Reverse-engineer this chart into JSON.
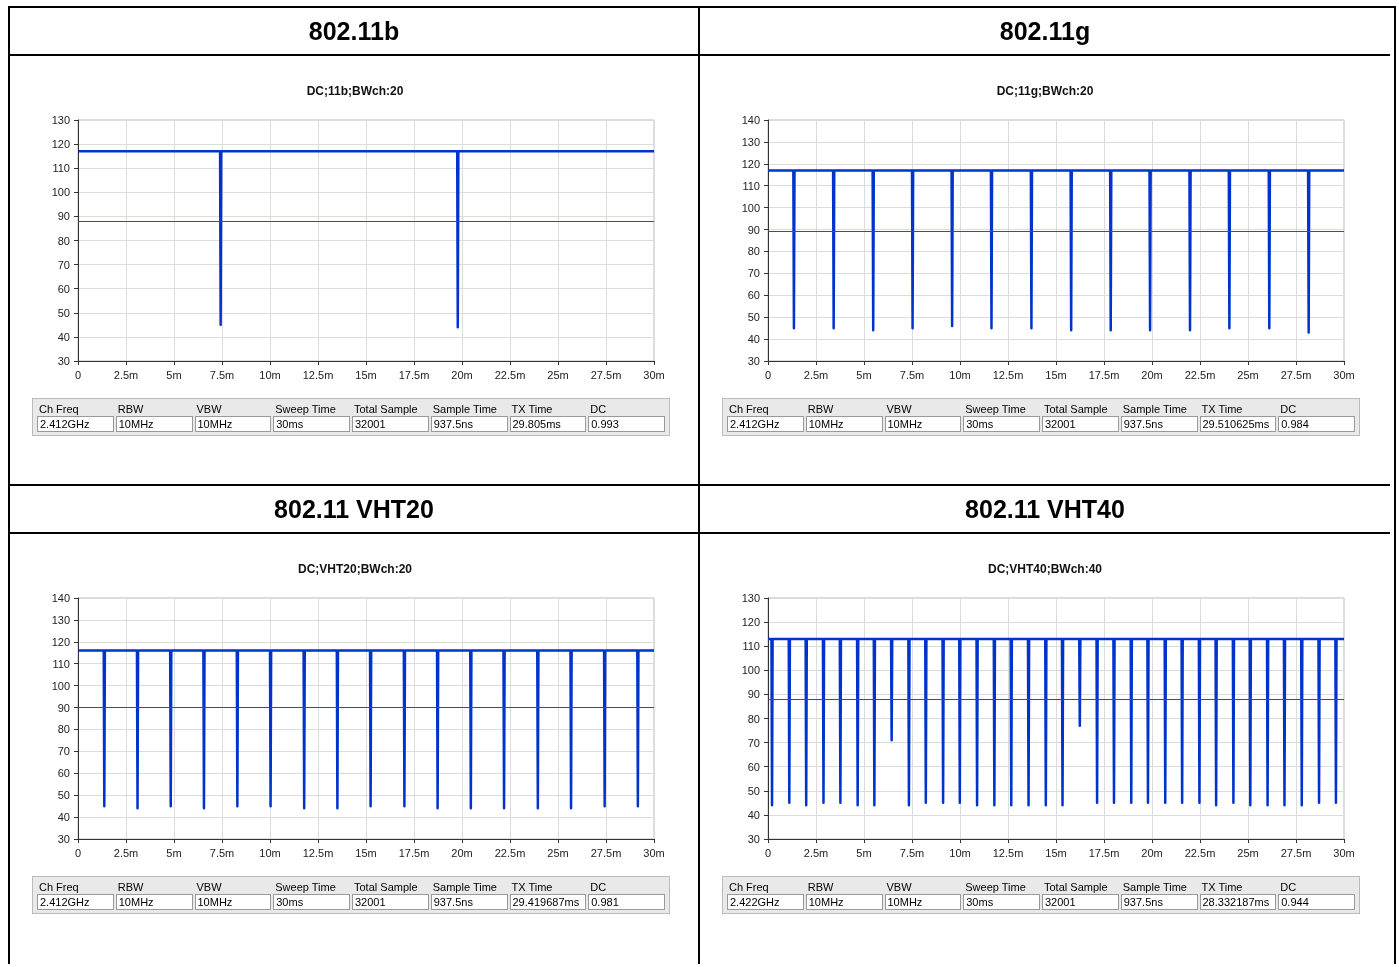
{
  "chart_data": [
    {
      "type": "line",
      "title": "802.11b",
      "subtitle": "DC;11b;BWch:20",
      "marker": "none",
      "grid": true,
      "x": [
        0,
        7.4,
        7.43,
        7.46,
        19.75,
        19.78,
        19.81,
        30
      ],
      "series": [
        {
          "color": "#0033cc",
          "values": [
            117,
            117,
            45,
            117,
            117,
            44,
            117,
            117
          ]
        }
      ],
      "xlim": [
        0,
        30
      ],
      "xticks": [
        {
          "value": 0,
          "label": "0"
        },
        {
          "value": 2.5,
          "label": "2.5m"
        },
        {
          "value": 5,
          "label": "5m"
        },
        {
          "value": 7.5,
          "label": "7.5m"
        },
        {
          "value": 10,
          "label": "10m"
        },
        {
          "value": 12.5,
          "label": "12.5m"
        },
        {
          "value": 15,
          "label": "15m"
        },
        {
          "value": 17.5,
          "label": "17.5m"
        },
        {
          "value": 20,
          "label": "20m"
        },
        {
          "value": 22.5,
          "label": "22.5m"
        },
        {
          "value": 25,
          "label": "25m"
        },
        {
          "value": 27.5,
          "label": "27.5m"
        },
        {
          "value": 30,
          "label": "30m"
        }
      ],
      "ylim": [
        30,
        130
      ],
      "yticks": [
        30,
        40,
        50,
        60,
        70,
        80,
        90,
        100,
        110,
        120,
        130
      ],
      "ref_lines": [
        {
          "axis": "y",
          "value": 88,
          "color": "#ff0000"
        }
      ],
      "annotations": [
        "Ch Freq",
        "RBW",
        "VBW",
        "Sweep Time",
        "Total Sample",
        "Sample Time",
        "TX Time",
        "DC",
        "2.412GHz",
        "10MHz",
        "10MHz",
        "30ms",
        "32001",
        "937.5ns",
        "29.805ms",
        "0.993"
      ]
    },
    {
      "type": "line",
      "title": "802.11g",
      "subtitle": "DC;11g;BWch:20",
      "marker": "none",
      "grid": true,
      "x": [
        0,
        1.32,
        1.35,
        1.38,
        3.39,
        3.42,
        3.45,
        5.45,
        5.48,
        5.51,
        7.5,
        7.53,
        7.56,
        9.56,
        9.59,
        9.62,
        11.61,
        11.64,
        11.67,
        13.69,
        13.72,
        13.75,
        15.76,
        15.79,
        15.82,
        17.82,
        17.85,
        17.88,
        19.87,
        19.9,
        19.93,
        21.95,
        21.98,
        22.01,
        24,
        24.03,
        24.06,
        26.08,
        26.11,
        26.14,
        28.13,
        28.16,
        28.19,
        30
      ],
      "series": [
        {
          "color": "#0033cc",
          "values": [
            117,
            117,
            45,
            117,
            117,
            45,
            117,
            117,
            44,
            117,
            117,
            45,
            117,
            117,
            46,
            117,
            117,
            45,
            117,
            117,
            45,
            117,
            117,
            44,
            117,
            117,
            44,
            117,
            117,
            44,
            117,
            117,
            44,
            117,
            117,
            45,
            117,
            117,
            45,
            117,
            117,
            43,
            117,
            117
          ]
        }
      ],
      "xlim": [
        0,
        30
      ],
      "xticks": [
        {
          "value": 0,
          "label": "0"
        },
        {
          "value": 2.5,
          "label": "2.5m"
        },
        {
          "value": 5,
          "label": "5m"
        },
        {
          "value": 7.5,
          "label": "7.5m"
        },
        {
          "value": 10,
          "label": "10m"
        },
        {
          "value": 12.5,
          "label": "12.5m"
        },
        {
          "value": 15,
          "label": "15m"
        },
        {
          "value": 17.5,
          "label": "17.5m"
        },
        {
          "value": 20,
          "label": "20m"
        },
        {
          "value": 22.5,
          "label": "22.5m"
        },
        {
          "value": 25,
          "label": "25m"
        },
        {
          "value": 27.5,
          "label": "27.5m"
        },
        {
          "value": 30,
          "label": "30m"
        }
      ],
      "ylim": [
        30,
        140
      ],
      "yticks": [
        30,
        40,
        50,
        60,
        70,
        80,
        90,
        100,
        110,
        120,
        130,
        140
      ],
      "ref_lines": [
        {
          "axis": "y",
          "value": 89,
          "color": "#ff0000"
        }
      ],
      "annotations": [
        "Ch Freq",
        "RBW",
        "VBW",
        "Sweep Time",
        "Total Sample",
        "Sample Time",
        "TX Time",
        "DC",
        "2.412GHz",
        "10MHz",
        "10MHz",
        "30ms",
        "32001",
        "937.5ns",
        "29.510625ms",
        "0.984"
      ]
    },
    {
      "type": "line",
      "title": "802.11 VHT20",
      "subtitle": "DC;VHT20;BWch:20",
      "marker": "none",
      "grid": true,
      "x": [
        0,
        1.34,
        1.37,
        1.4,
        3.07,
        3.1,
        3.13,
        4.8,
        4.83,
        4.86,
        6.53,
        6.56,
        6.59,
        8.27,
        8.3,
        8.33,
        10,
        10.03,
        10.06,
        11.75,
        11.78,
        11.81,
        13.48,
        13.51,
        13.54,
        15.21,
        15.24,
        15.27,
        16.97,
        17,
        17.03,
        18.7,
        18.73,
        18.76,
        20.43,
        20.46,
        20.49,
        22.16,
        22.19,
        22.22,
        23.92,
        23.95,
        23.98,
        25.65,
        25.68,
        25.71,
        27.4,
        27.43,
        27.46,
        29.13,
        29.16,
        29.19,
        30
      ],
      "series": [
        {
          "color": "#0033cc",
          "values": [
            116,
            116,
            45,
            116,
            116,
            44,
            116,
            116,
            45,
            116,
            116,
            44,
            116,
            116,
            45,
            116,
            116,
            45,
            116,
            116,
            44,
            116,
            116,
            44,
            116,
            116,
            45,
            116,
            116,
            45,
            116,
            116,
            44,
            116,
            116,
            44,
            116,
            116,
            44,
            116,
            116,
            44,
            116,
            116,
            44,
            116,
            116,
            45,
            116,
            116,
            45,
            116,
            116
          ]
        }
      ],
      "xlim": [
        0,
        30
      ],
      "xticks": [
        {
          "value": 0,
          "label": "0"
        },
        {
          "value": 2.5,
          "label": "2.5m"
        },
        {
          "value": 5,
          "label": "5m"
        },
        {
          "value": 7.5,
          "label": "7.5m"
        },
        {
          "value": 10,
          "label": "10m"
        },
        {
          "value": 12.5,
          "label": "12.5m"
        },
        {
          "value": 15,
          "label": "15m"
        },
        {
          "value": 17.5,
          "label": "17.5m"
        },
        {
          "value": 20,
          "label": "20m"
        },
        {
          "value": 22.5,
          "label": "22.5m"
        },
        {
          "value": 25,
          "label": "25m"
        },
        {
          "value": 27.5,
          "label": "27.5m"
        },
        {
          "value": 30,
          "label": "30m"
        }
      ],
      "ylim": [
        30,
        140
      ],
      "yticks": [
        30,
        40,
        50,
        60,
        70,
        80,
        90,
        100,
        110,
        120,
        130,
        140
      ],
      "ref_lines": [
        {
          "axis": "y",
          "value": 90,
          "color": "#ff0000"
        }
      ],
      "annotations": [
        "Ch Freq",
        "RBW",
        "VBW",
        "Sweep Time",
        "Total Sample",
        "Sample Time",
        "TX Time",
        "DC",
        "2.412GHz",
        "10MHz",
        "10MHz",
        "30ms",
        "32001",
        "937.5ns",
        "29.419687ms",
        "0.981"
      ]
    },
    {
      "type": "line",
      "title": "802.11 VHT40",
      "subtitle": "DC;VHT40;BWch:40",
      "marker": "none",
      "grid": true,
      "x": [
        0,
        0.18,
        0.21,
        0.24,
        1.08,
        1.11,
        1.14,
        1.96,
        1.99,
        2.02,
        2.86,
        2.89,
        2.92,
        3.74,
        3.77,
        3.8,
        4.64,
        4.67,
        4.7,
        5.51,
        5.54,
        5.57,
        6.41,
        6.44,
        6.47,
        7.31,
        7.34,
        7.37,
        8.19,
        8.22,
        8.25,
        9.09,
        9.12,
        9.15,
        9.96,
        9.99,
        10.02,
        10.86,
        10.89,
        10.92,
        11.76,
        11.79,
        11.82,
        12.64,
        12.67,
        12.7,
        13.54,
        13.57,
        13.6,
        14.44,
        14.47,
        14.5,
        15.31,
        15.34,
        15.37,
        16.21,
        16.24,
        16.27,
        17.11,
        17.14,
        17.17,
        17.99,
        18.02,
        18.05,
        18.89,
        18.92,
        18.95,
        19.76,
        19.79,
        19.82,
        20.66,
        20.69,
        20.72,
        21.54,
        21.57,
        21.6,
        22.44,
        22.47,
        22.5,
        23.31,
        23.34,
        23.37,
        24.21,
        24.24,
        24.27,
        25.09,
        25.12,
        25.15,
        25.99,
        26.02,
        26.05,
        26.87,
        26.9,
        26.93,
        27.77,
        27.8,
        27.83,
        28.67,
        28.7,
        28.73,
        29.55,
        29.58,
        29.61,
        30
      ],
      "series": [
        {
          "color": "#0033cc",
          "values": [
            113,
            113,
            44,
            113,
            113,
            45,
            113,
            113,
            44,
            113,
            113,
            45,
            113,
            113,
            45,
            113,
            113,
            44,
            113,
            113,
            44,
            113,
            113,
            71,
            113,
            113,
            44,
            113,
            113,
            45,
            113,
            113,
            45,
            113,
            113,
            45,
            113,
            113,
            44,
            113,
            113,
            44,
            113,
            113,
            44,
            113,
            113,
            44,
            113,
            113,
            44,
            113,
            113,
            44,
            113,
            113,
            77,
            113,
            113,
            45,
            113,
            113,
            45,
            113,
            113,
            45,
            113,
            113,
            45,
            113,
            113,
            45,
            113,
            113,
            45,
            113,
            113,
            45,
            113,
            113,
            44,
            113,
            113,
            45,
            113,
            113,
            44,
            113,
            113,
            44,
            113,
            113,
            44,
            113,
            113,
            44,
            113,
            113,
            45,
            113,
            113,
            45,
            113,
            113
          ]
        }
      ],
      "xlim": [
        0,
        30
      ],
      "xticks": [
        {
          "value": 0,
          "label": "0"
        },
        {
          "value": 2.5,
          "label": "2.5m"
        },
        {
          "value": 5,
          "label": "5m"
        },
        {
          "value": 7.5,
          "label": "7.5m"
        },
        {
          "value": 10,
          "label": "10m"
        },
        {
          "value": 12.5,
          "label": "12.5m"
        },
        {
          "value": 15,
          "label": "15m"
        },
        {
          "value": 17.5,
          "label": "17.5m"
        },
        {
          "value": 20,
          "label": "20m"
        },
        {
          "value": 22.5,
          "label": "22.5m"
        },
        {
          "value": 25,
          "label": "25m"
        },
        {
          "value": 27.5,
          "label": "27.5m"
        },
        {
          "value": 30,
          "label": "30m"
        }
      ],
      "ylim": [
        30,
        130
      ],
      "yticks": [
        30,
        40,
        50,
        60,
        70,
        80,
        90,
        100,
        110,
        120,
        130
      ],
      "ref_lines": [
        {
          "axis": "y",
          "value": 88,
          "color": "#ff0000"
        }
      ],
      "annotations": [
        "Ch Freq",
        "RBW",
        "VBW",
        "Sweep Time",
        "Total Sample",
        "Sample Time",
        "TX Time",
        "DC",
        "2.422GHz",
        "10MHz",
        "10MHz",
        "30ms",
        "32001",
        "937.5ns",
        "28.332187ms",
        "0.944"
      ]
    }
  ]
}
